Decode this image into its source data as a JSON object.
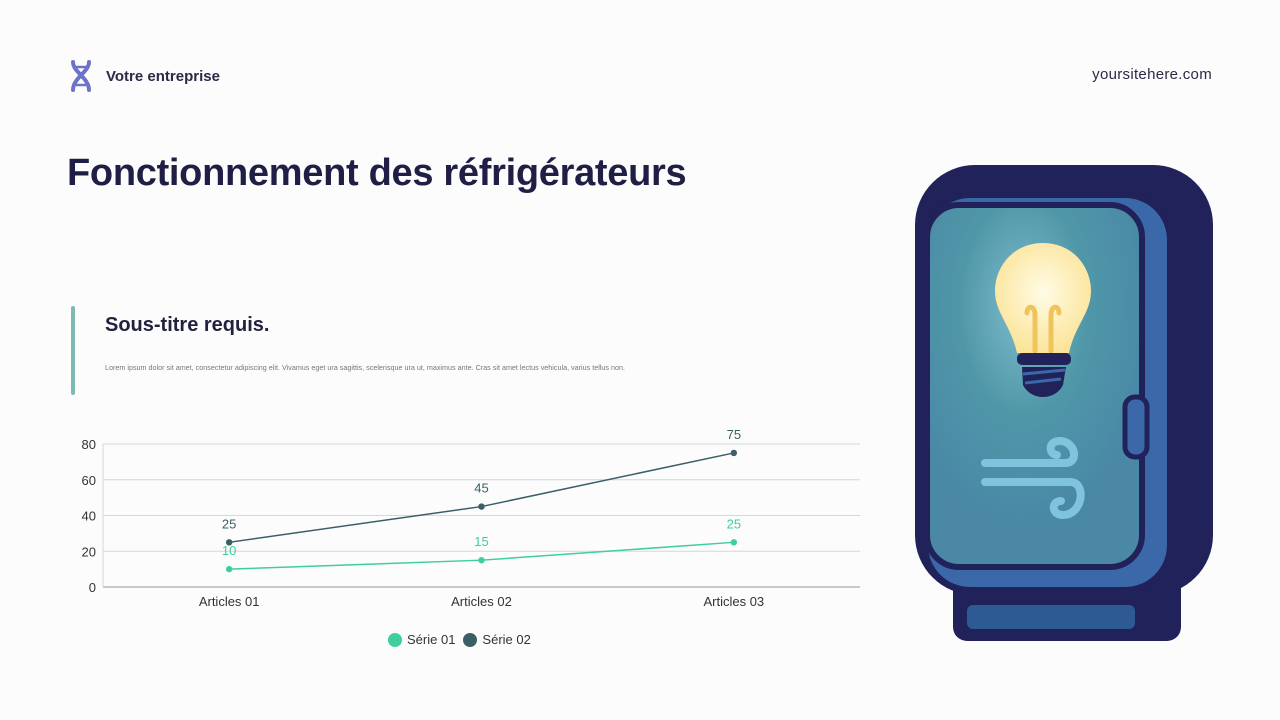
{
  "header": {
    "brand_name": "Votre entreprise",
    "brand_icon": "dna-icon",
    "site": "yoursitehere.com"
  },
  "title": "Fonctionnement des réfrigérateurs",
  "section": {
    "subtitle": "Sous-titre requis.",
    "body": "Lorem ipsum dolor sit amet, consectetur adipiscing elit. Vivamus eget ura sagittis, scelerisque ura ut, maximus ante. Cras sit amet lectus vehicula, varius tellus non."
  },
  "illustration": {
    "name": "refrigerator-lightbulb-wind-illustration"
  },
  "chart_data": {
    "type": "line",
    "categories": [
      "Articles 01",
      "Articles 02",
      "Articles 03"
    ],
    "series": [
      {
        "name": "Série 01",
        "values": [
          10,
          15,
          25
        ],
        "color": "#3ecf9a"
      },
      {
        "name": "Série 02",
        "values": [
          25,
          45,
          75
        ],
        "color": "#3a6066"
      }
    ],
    "yticks": [
      "0",
      "20",
      "40",
      "60",
      "80"
    ],
    "ylim": [
      0,
      80
    ],
    "grid": true,
    "legend": "bottom",
    "data_labels": true
  }
}
